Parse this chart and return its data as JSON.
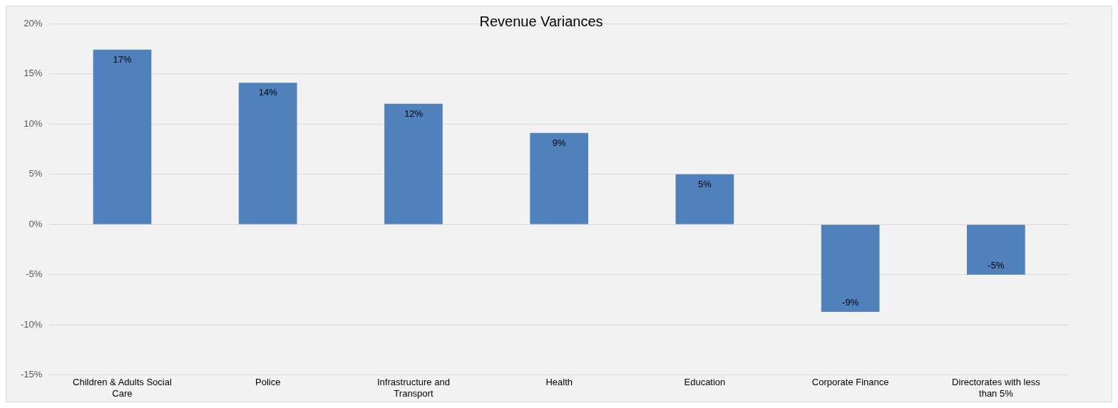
{
  "chart_data": {
    "type": "bar",
    "title": "Revenue Variances",
    "categories": [
      "Children & Adults Social Care",
      "Police",
      "Infrastructure and Transport",
      "Health",
      "Education",
      "Corporate Finance",
      "Directorates with less than 5%"
    ],
    "values": [
      17.4,
      14.1,
      12,
      9.1,
      5,
      -8.7,
      -5
    ],
    "value_labels": [
      "17%",
      "14%",
      "12%",
      "9%",
      "5%",
      "-9%",
      "-5%"
    ],
    "color": "#4f81bd",
    "ylim": [
      -15,
      20
    ],
    "yticks": [
      {
        "value": -15,
        "label": "-15%"
      },
      {
        "value": -10,
        "label": "-10%"
      },
      {
        "value": -5,
        "label": "-5%"
      },
      {
        "value": 0,
        "label": "0%"
      },
      {
        "value": 5,
        "label": "5%"
      },
      {
        "value": 10,
        "label": "10%"
      },
      {
        "value": 15,
        "label": "15%"
      },
      {
        "value": 20,
        "label": "20%"
      }
    ],
    "grid": "y"
  }
}
